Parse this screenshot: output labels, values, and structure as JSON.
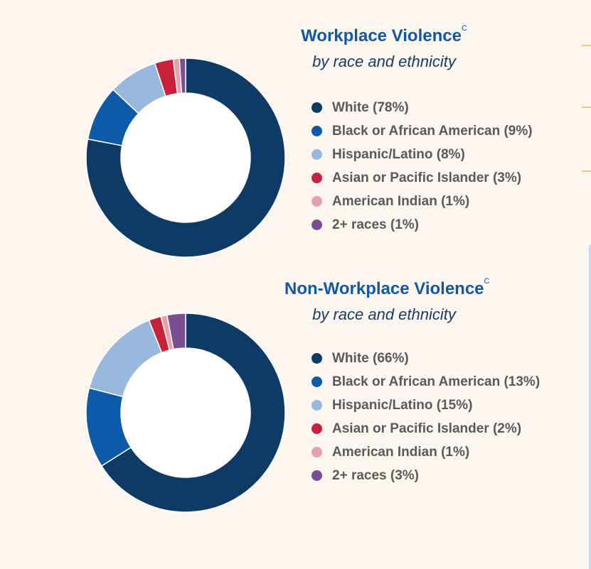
{
  "colors": {
    "white": "#0d3b66",
    "black": "#0d5aa8",
    "hispanic": "#98b8de",
    "asian": "#c8203a",
    "american_indian": "#e4a2ac",
    "two_plus": "#7a4f90",
    "title": "#0f5aa6",
    "subtitle": "#143d6b",
    "background": "#fcf6ee"
  },
  "chart_data": [
    {
      "type": "pie",
      "title": "Workplace Violence",
      "title_superscript": "C",
      "subtitle": "by race and ethnicity",
      "slices": [
        {
          "label": "White (78%)",
          "value": 78,
          "color": "#0d3b66"
        },
        {
          "label": "Black or African American (9%)",
          "value": 9,
          "color": "#0d5aa8"
        },
        {
          "label": "Hispanic/Latino (8%)",
          "value": 8,
          "color": "#98b8de"
        },
        {
          "label": "Asian or Pacific Islander (3%)",
          "value": 3,
          "color": "#c8203a"
        },
        {
          "label": "American Indian (1%)",
          "value": 1,
          "color": "#e4a2ac"
        },
        {
          "label": "2+ races (1%)",
          "value": 1,
          "color": "#7a4f90"
        }
      ]
    },
    {
      "type": "pie",
      "title": "Non-Workplace Violence",
      "title_superscript": "C",
      "subtitle": "by race and ethnicity",
      "slices": [
        {
          "label": "White (66%)",
          "value": 66,
          "color": "#0d3b66"
        },
        {
          "label": "Black or African American (13%)",
          "value": 13,
          "color": "#0d5aa8"
        },
        {
          "label": "Hispanic/Latino (15%)",
          "value": 15,
          "color": "#98b8de"
        },
        {
          "label": "Asian or Pacific Islander (2%)",
          "value": 2,
          "color": "#c8203a"
        },
        {
          "label": "American Indian (1%)",
          "value": 1,
          "color": "#e4a2ac"
        },
        {
          "label": "2+ races (3%)",
          "value": 3,
          "color": "#7a4f90"
        }
      ]
    }
  ]
}
